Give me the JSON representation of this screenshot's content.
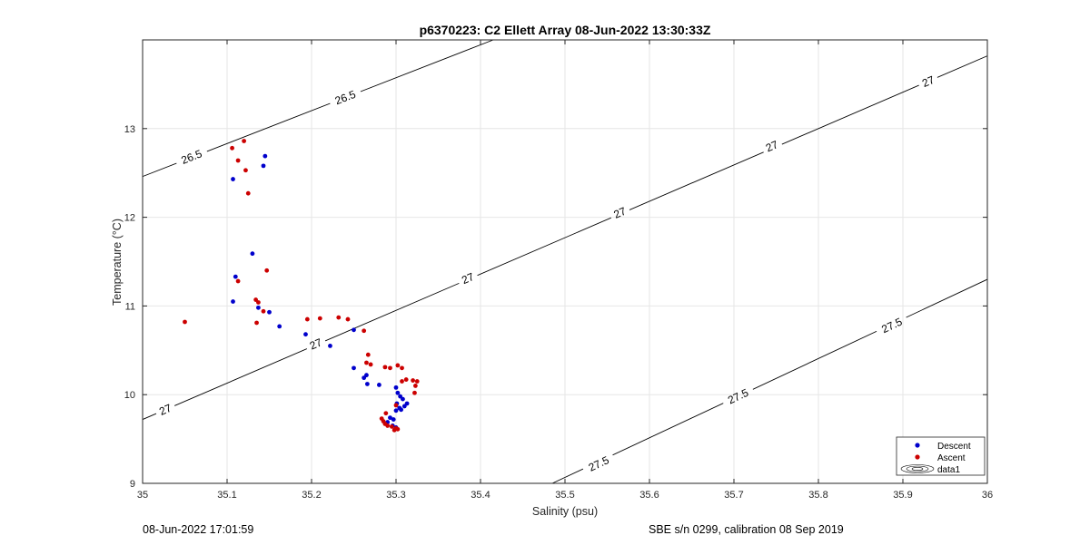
{
  "chart_data": {
    "type": "scatter",
    "title": "p6370223: C2 Ellett Array 08-Jun-2022 13:30:33Z",
    "xlabel": "Salinity (psu)",
    "ylabel": "Temperature (°C)",
    "xlim": [
      35,
      36
    ],
    "ylim": [
      9,
      14
    ],
    "xticks": [
      35,
      35.1,
      35.2,
      35.3,
      35.4,
      35.5,
      35.6,
      35.7,
      35.8,
      35.9,
      36
    ],
    "xtick_labels": [
      "35",
      "35.1",
      "35.2",
      "35.3",
      "35.4",
      "35.5",
      "35.6",
      "35.7",
      "35.8",
      "35.9",
      "36"
    ],
    "yticks": [
      9,
      10,
      11,
      12,
      13
    ],
    "ytick_labels": [
      "9",
      "10",
      "11",
      "12",
      "13"
    ],
    "grid": true,
    "legend_position": "bottom-right",
    "legend_entries": [
      "Descent",
      "Ascent",
      "data1"
    ],
    "series": [
      {
        "name": "Descent",
        "color": "#0000cc",
        "points": [
          [
            35.107,
            12.43
          ],
          [
            35.143,
            12.58
          ],
          [
            35.145,
            12.69
          ],
          [
            35.13,
            11.59
          ],
          [
            35.11,
            11.33
          ],
          [
            35.107,
            11.05
          ],
          [
            35.137,
            10.98
          ],
          [
            35.15,
            10.93
          ],
          [
            35.162,
            10.77
          ],
          [
            35.193,
            10.68
          ],
          [
            35.222,
            10.55
          ],
          [
            35.25,
            10.73
          ],
          [
            35.25,
            10.3
          ],
          [
            35.262,
            10.19
          ],
          [
            35.265,
            10.22
          ],
          [
            35.266,
            10.12
          ],
          [
            35.28,
            10.11
          ],
          [
            35.3,
            10.08
          ],
          [
            35.302,
            10.02
          ],
          [
            35.305,
            9.98
          ],
          [
            35.308,
            9.95
          ],
          [
            35.301,
            9.9
          ],
          [
            35.304,
            9.85
          ],
          [
            35.31,
            9.87
          ],
          [
            35.313,
            9.9
          ],
          [
            35.306,
            9.83
          ],
          [
            35.3,
            9.82
          ],
          [
            35.297,
            9.72
          ],
          [
            35.293,
            9.74
          ],
          [
            35.29,
            9.69
          ],
          [
            35.296,
            9.65
          ],
          [
            35.3,
            9.63
          ]
        ]
      },
      {
        "name": "Ascent",
        "color": "#cc0000",
        "points": [
          [
            35.106,
            12.78
          ],
          [
            35.12,
            12.86
          ],
          [
            35.113,
            12.64
          ],
          [
            35.122,
            12.53
          ],
          [
            35.125,
            12.27
          ],
          [
            35.113,
            11.28
          ],
          [
            35.147,
            11.4
          ],
          [
            35.134,
            11.07
          ],
          [
            35.137,
            11.04
          ],
          [
            35.143,
            10.94
          ],
          [
            35.135,
            10.81
          ],
          [
            35.05,
            10.82
          ],
          [
            35.195,
            10.85
          ],
          [
            35.21,
            10.86
          ],
          [
            35.232,
            10.87
          ],
          [
            35.243,
            10.85
          ],
          [
            35.262,
            10.72
          ],
          [
            35.267,
            10.45
          ],
          [
            35.265,
            10.36
          ],
          [
            35.27,
            10.34
          ],
          [
            35.287,
            10.31
          ],
          [
            35.293,
            10.3
          ],
          [
            35.302,
            10.33
          ],
          [
            35.307,
            10.3
          ],
          [
            35.312,
            10.17
          ],
          [
            35.32,
            10.16
          ],
          [
            35.325,
            10.15
          ],
          [
            35.323,
            10.1
          ],
          [
            35.322,
            10.02
          ],
          [
            35.307,
            10.15
          ],
          [
            35.3,
            9.88
          ],
          [
            35.288,
            9.79
          ],
          [
            35.283,
            9.73
          ],
          [
            35.285,
            9.7
          ],
          [
            35.287,
            9.67
          ],
          [
            35.29,
            9.65
          ],
          [
            35.295,
            9.64
          ],
          [
            35.3,
            9.62
          ],
          [
            35.302,
            9.61
          ],
          [
            35.298,
            9.6
          ]
        ]
      }
    ],
    "contours": [
      {
        "level_label": "26.5",
        "points": [
          [
            35.0,
            12.46
          ],
          [
            35.415,
            14.0
          ]
        ],
        "labels_at": [
          [
            35.058,
            12.68
          ],
          [
            35.24,
            13.35
          ]
        ]
      },
      {
        "level_label": "27",
        "points": [
          [
            35.0,
            9.72
          ],
          [
            36.0,
            13.82
          ]
        ],
        "labels_at": [
          [
            35.027,
            9.83
          ],
          [
            35.205,
            10.57
          ],
          [
            35.385,
            11.31
          ],
          [
            35.565,
            12.05
          ],
          [
            35.745,
            12.8
          ],
          [
            35.93,
            13.53
          ]
        ]
      },
      {
        "level_label": "27.5",
        "points": [
          [
            35.485,
            9.0
          ],
          [
            36.0,
            11.3
          ]
        ],
        "labels_at": [
          [
            35.54,
            9.22
          ],
          [
            35.705,
            9.98
          ],
          [
            35.887,
            10.78
          ]
        ]
      }
    ]
  },
  "footer": {
    "left": "08-Jun-2022 17:01:59",
    "right": "SBE s/n 0299, calibration 08 Sep 2019"
  }
}
